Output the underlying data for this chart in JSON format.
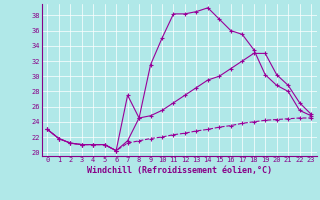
{
  "xlabel": "Windchill (Refroidissement éolien,°C)",
  "bg_color": "#b0e8e8",
  "line_color": "#990099",
  "grid_color": "#ffffff",
  "xmin": -0.5,
  "xmax": 23.5,
  "ymin": 19.5,
  "ymax": 39.5,
  "yticks": [
    20,
    22,
    24,
    26,
    28,
    30,
    32,
    34,
    36,
    38
  ],
  "xticks": [
    0,
    1,
    2,
    3,
    4,
    5,
    6,
    7,
    8,
    9,
    10,
    11,
    12,
    13,
    14,
    15,
    16,
    17,
    18,
    19,
    20,
    21,
    22,
    23
  ],
  "line1_x": [
    0,
    1,
    2,
    3,
    4,
    5,
    6,
    7,
    8,
    9,
    10,
    11,
    12,
    13,
    14,
    15,
    16,
    17,
    18,
    19,
    20,
    21,
    22,
    23
  ],
  "line1_y": [
    23.0,
    21.8,
    21.2,
    21.0,
    21.0,
    21.0,
    20.2,
    27.5,
    24.5,
    31.5,
    35.0,
    38.2,
    38.2,
    38.5,
    39.0,
    37.5,
    36.0,
    35.5,
    33.5,
    30.2,
    28.8,
    28.0,
    25.5,
    24.8
  ],
  "line2_x": [
    0,
    1,
    2,
    3,
    4,
    5,
    6,
    7,
    8,
    9,
    10,
    11,
    12,
    13,
    14,
    15,
    16,
    17,
    18,
    19,
    20,
    21,
    22,
    23
  ],
  "line2_y": [
    23.0,
    21.8,
    21.2,
    21.0,
    21.0,
    21.0,
    20.2,
    21.5,
    24.5,
    24.8,
    25.5,
    26.5,
    27.5,
    28.5,
    29.5,
    30.0,
    31.0,
    32.0,
    33.0,
    33.0,
    30.2,
    28.8,
    26.5,
    25.0
  ],
  "line3_x": [
    0,
    1,
    2,
    3,
    4,
    5,
    6,
    7,
    8,
    9,
    10,
    11,
    12,
    13,
    14,
    15,
    16,
    17,
    18,
    19,
    20,
    21,
    22,
    23
  ],
  "line3_y": [
    23.0,
    21.8,
    21.2,
    21.0,
    21.0,
    21.0,
    20.2,
    21.2,
    21.5,
    21.8,
    22.0,
    22.3,
    22.5,
    22.8,
    23.0,
    23.3,
    23.5,
    23.8,
    24.0,
    24.2,
    24.3,
    24.4,
    24.5,
    24.5
  ],
  "markersize": 3,
  "linewidth": 0.8,
  "tick_fontsize": 5,
  "xlabel_fontsize": 6,
  "tick_color": "#880088",
  "label_color": "#880088",
  "spine_color": "#880088"
}
